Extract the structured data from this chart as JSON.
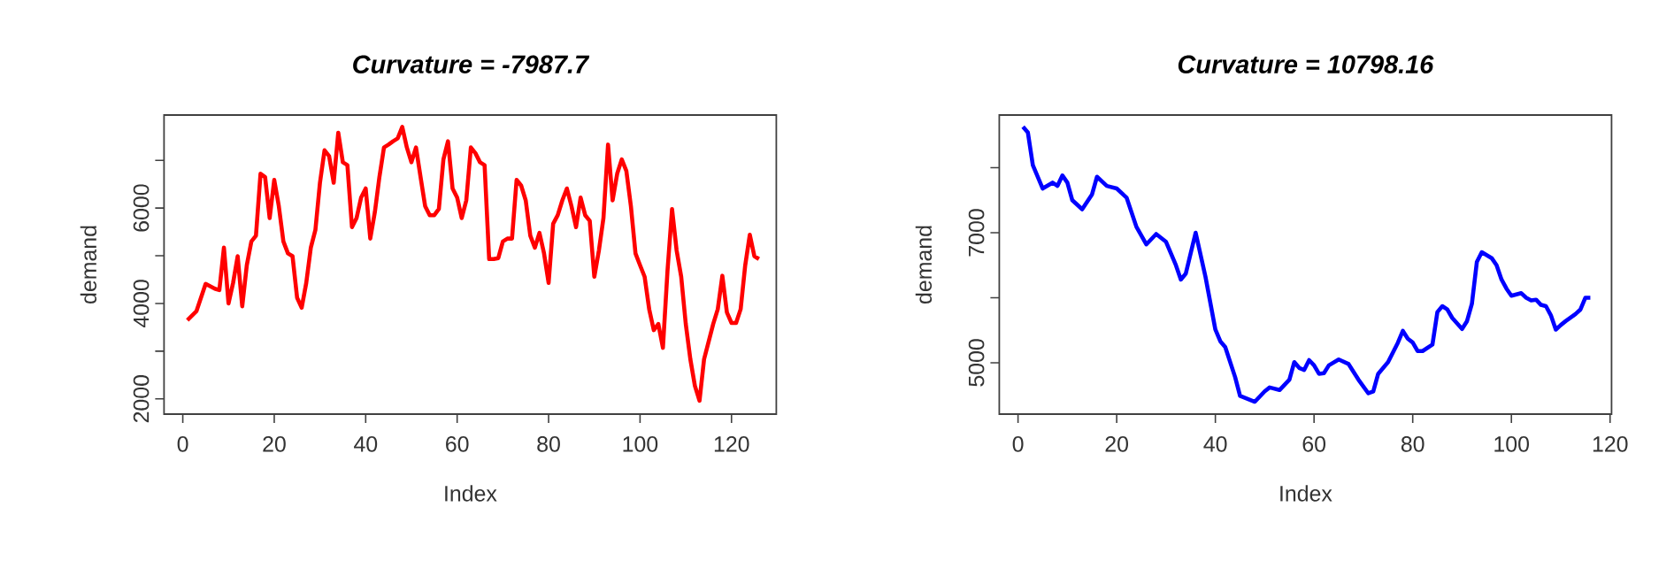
{
  "chart_data": [
    {
      "type": "line",
      "title": "Curvature = -7987.7",
      "xlabel": "Index",
      "ylabel": "demand",
      "color": "#ff0000",
      "line_style": "solid",
      "grid": false,
      "xlim": [
        -4.1,
        129.8
      ],
      "ylim": [
        1680,
        7950
      ],
      "xticks": [
        0,
        20,
        40,
        60,
        80,
        100,
        120
      ],
      "yticks": [
        2000,
        {
          "value": 3000,
          "label": null
        },
        4000,
        {
          "value": 5000,
          "label": null
        },
        6000,
        {
          "value": 7000,
          "label": null
        }
      ],
      "x": [
        1,
        3,
        5,
        7,
        8,
        9,
        10,
        11,
        12,
        13,
        14,
        15,
        16,
        17,
        18,
        19,
        20,
        21,
        22,
        23,
        24,
        25,
        26,
        27,
        28,
        29,
        30,
        31,
        32,
        33,
        34,
        35,
        36,
        37,
        38,
        39,
        40,
        41,
        42,
        43,
        44,
        45,
        46,
        47,
        48,
        49,
        50,
        51,
        52,
        53,
        54,
        55,
        56,
        57,
        58,
        59,
        60,
        61,
        62,
        63,
        64,
        65,
        66,
        67,
        68,
        69,
        70,
        71,
        72,
        73,
        74,
        75,
        76,
        77,
        78,
        79,
        80,
        81,
        82,
        83,
        84,
        85,
        86,
        87,
        88,
        89,
        90,
        91,
        92,
        93,
        94,
        95,
        96,
        97,
        98,
        99,
        100,
        101,
        102,
        103,
        104,
        105,
        106,
        107,
        108,
        109,
        110,
        111,
        112,
        113,
        114,
        115,
        116,
        117,
        118,
        119,
        120,
        121,
        122,
        123,
        124,
        125,
        126
      ],
      "values": [
        3650,
        3840,
        4410,
        4310,
        4280,
        5170,
        4000,
        4430,
        4990,
        3940,
        4800,
        5300,
        5420,
        6720,
        6650,
        5790,
        6590,
        6040,
        5300,
        5050,
        4990,
        4120,
        3910,
        4430,
        5170,
        5540,
        6530,
        7210,
        7090,
        6530,
        7580,
        6960,
        6900,
        5600,
        5790,
        6220,
        6410,
        5360,
        5910,
        6650,
        7270,
        7330,
        7400,
        7460,
        7700,
        7270,
        6960,
        7270,
        6650,
        6040,
        5850,
        5850,
        5980,
        7020,
        7400,
        6410,
        6220,
        5790,
        6160,
        7270,
        7150,
        6960,
        6900,
        4930,
        4930,
        4950,
        5300,
        5360,
        5360,
        6590,
        6470,
        6160,
        5420,
        5170,
        5480,
        5050,
        4430,
        5670,
        5850,
        6160,
        6410,
        6040,
        5600,
        6220,
        5850,
        5730,
        4560,
        5110,
        5790,
        7330,
        6160,
        6720,
        7020,
        6780,
        6040,
        5050,
        4800,
        4560,
        3880,
        3440,
        3570,
        3070,
        4680,
        5980,
        5110,
        4560,
        3570,
        2830,
        2270,
        1960,
        2830,
        3200,
        3570,
        3880,
        4580,
        3810,
        3590,
        3590,
        3880,
        4800,
        5440,
        4990,
        4930
      ]
    },
    {
      "type": "line",
      "title": "Curvature = 10798.16",
      "xlabel": "Index",
      "ylabel": "demand",
      "color": "#0000ff",
      "line_style": "solid",
      "grid": false,
      "xlim": [
        -3.8,
        120.3
      ],
      "ylim": [
        4210,
        8810
      ],
      "xticks": [
        0,
        20,
        40,
        60,
        80,
        100,
        120
      ],
      "yticks": [
        5000,
        {
          "value": 6000,
          "label": null
        },
        7000,
        {
          "value": 8000,
          "label": null
        }
      ],
      "x": [
        1,
        2,
        3,
        5,
        7,
        8,
        9,
        10,
        11,
        13,
        15,
        16,
        18,
        20,
        22,
        24,
        26,
        28,
        30,
        32,
        33,
        34,
        36,
        38,
        40,
        41,
        42,
        44,
        45,
        48,
        50,
        51,
        53,
        55,
        56,
        57,
        58,
        59,
        60,
        61,
        62,
        63,
        65,
        67,
        69,
        71,
        72,
        73,
        75,
        77,
        78,
        79,
        80,
        81,
        82,
        84,
        85,
        86,
        87,
        88,
        90,
        91,
        92,
        93,
        94,
        96,
        97,
        98,
        99,
        100,
        101,
        102,
        103,
        104,
        105,
        106,
        107,
        108,
        109,
        110,
        111,
        113,
        114,
        115,
        116
      ],
      "values": [
        8630,
        8540,
        8040,
        7680,
        7770,
        7720,
        7880,
        7770,
        7500,
        7360,
        7590,
        7860,
        7720,
        7680,
        7540,
        7090,
        6820,
        6980,
        6860,
        6500,
        6280,
        6370,
        7000,
        6320,
        5510,
        5330,
        5240,
        4780,
        4490,
        4400,
        4560,
        4620,
        4580,
        4740,
        5010,
        4920,
        4890,
        5040,
        4960,
        4830,
        4840,
        4960,
        5050,
        4980,
        4740,
        4530,
        4560,
        4830,
        5010,
        5310,
        5490,
        5370,
        5310,
        5180,
        5180,
        5280,
        5780,
        5870,
        5820,
        5690,
        5520,
        5640,
        5910,
        6550,
        6700,
        6610,
        6500,
        6280,
        6140,
        6030,
        6050,
        6070,
        6000,
        5960,
        5970,
        5890,
        5870,
        5730,
        5510,
        5580,
        5640,
        5750,
        5820,
        6000,
        6000
      ]
    }
  ]
}
